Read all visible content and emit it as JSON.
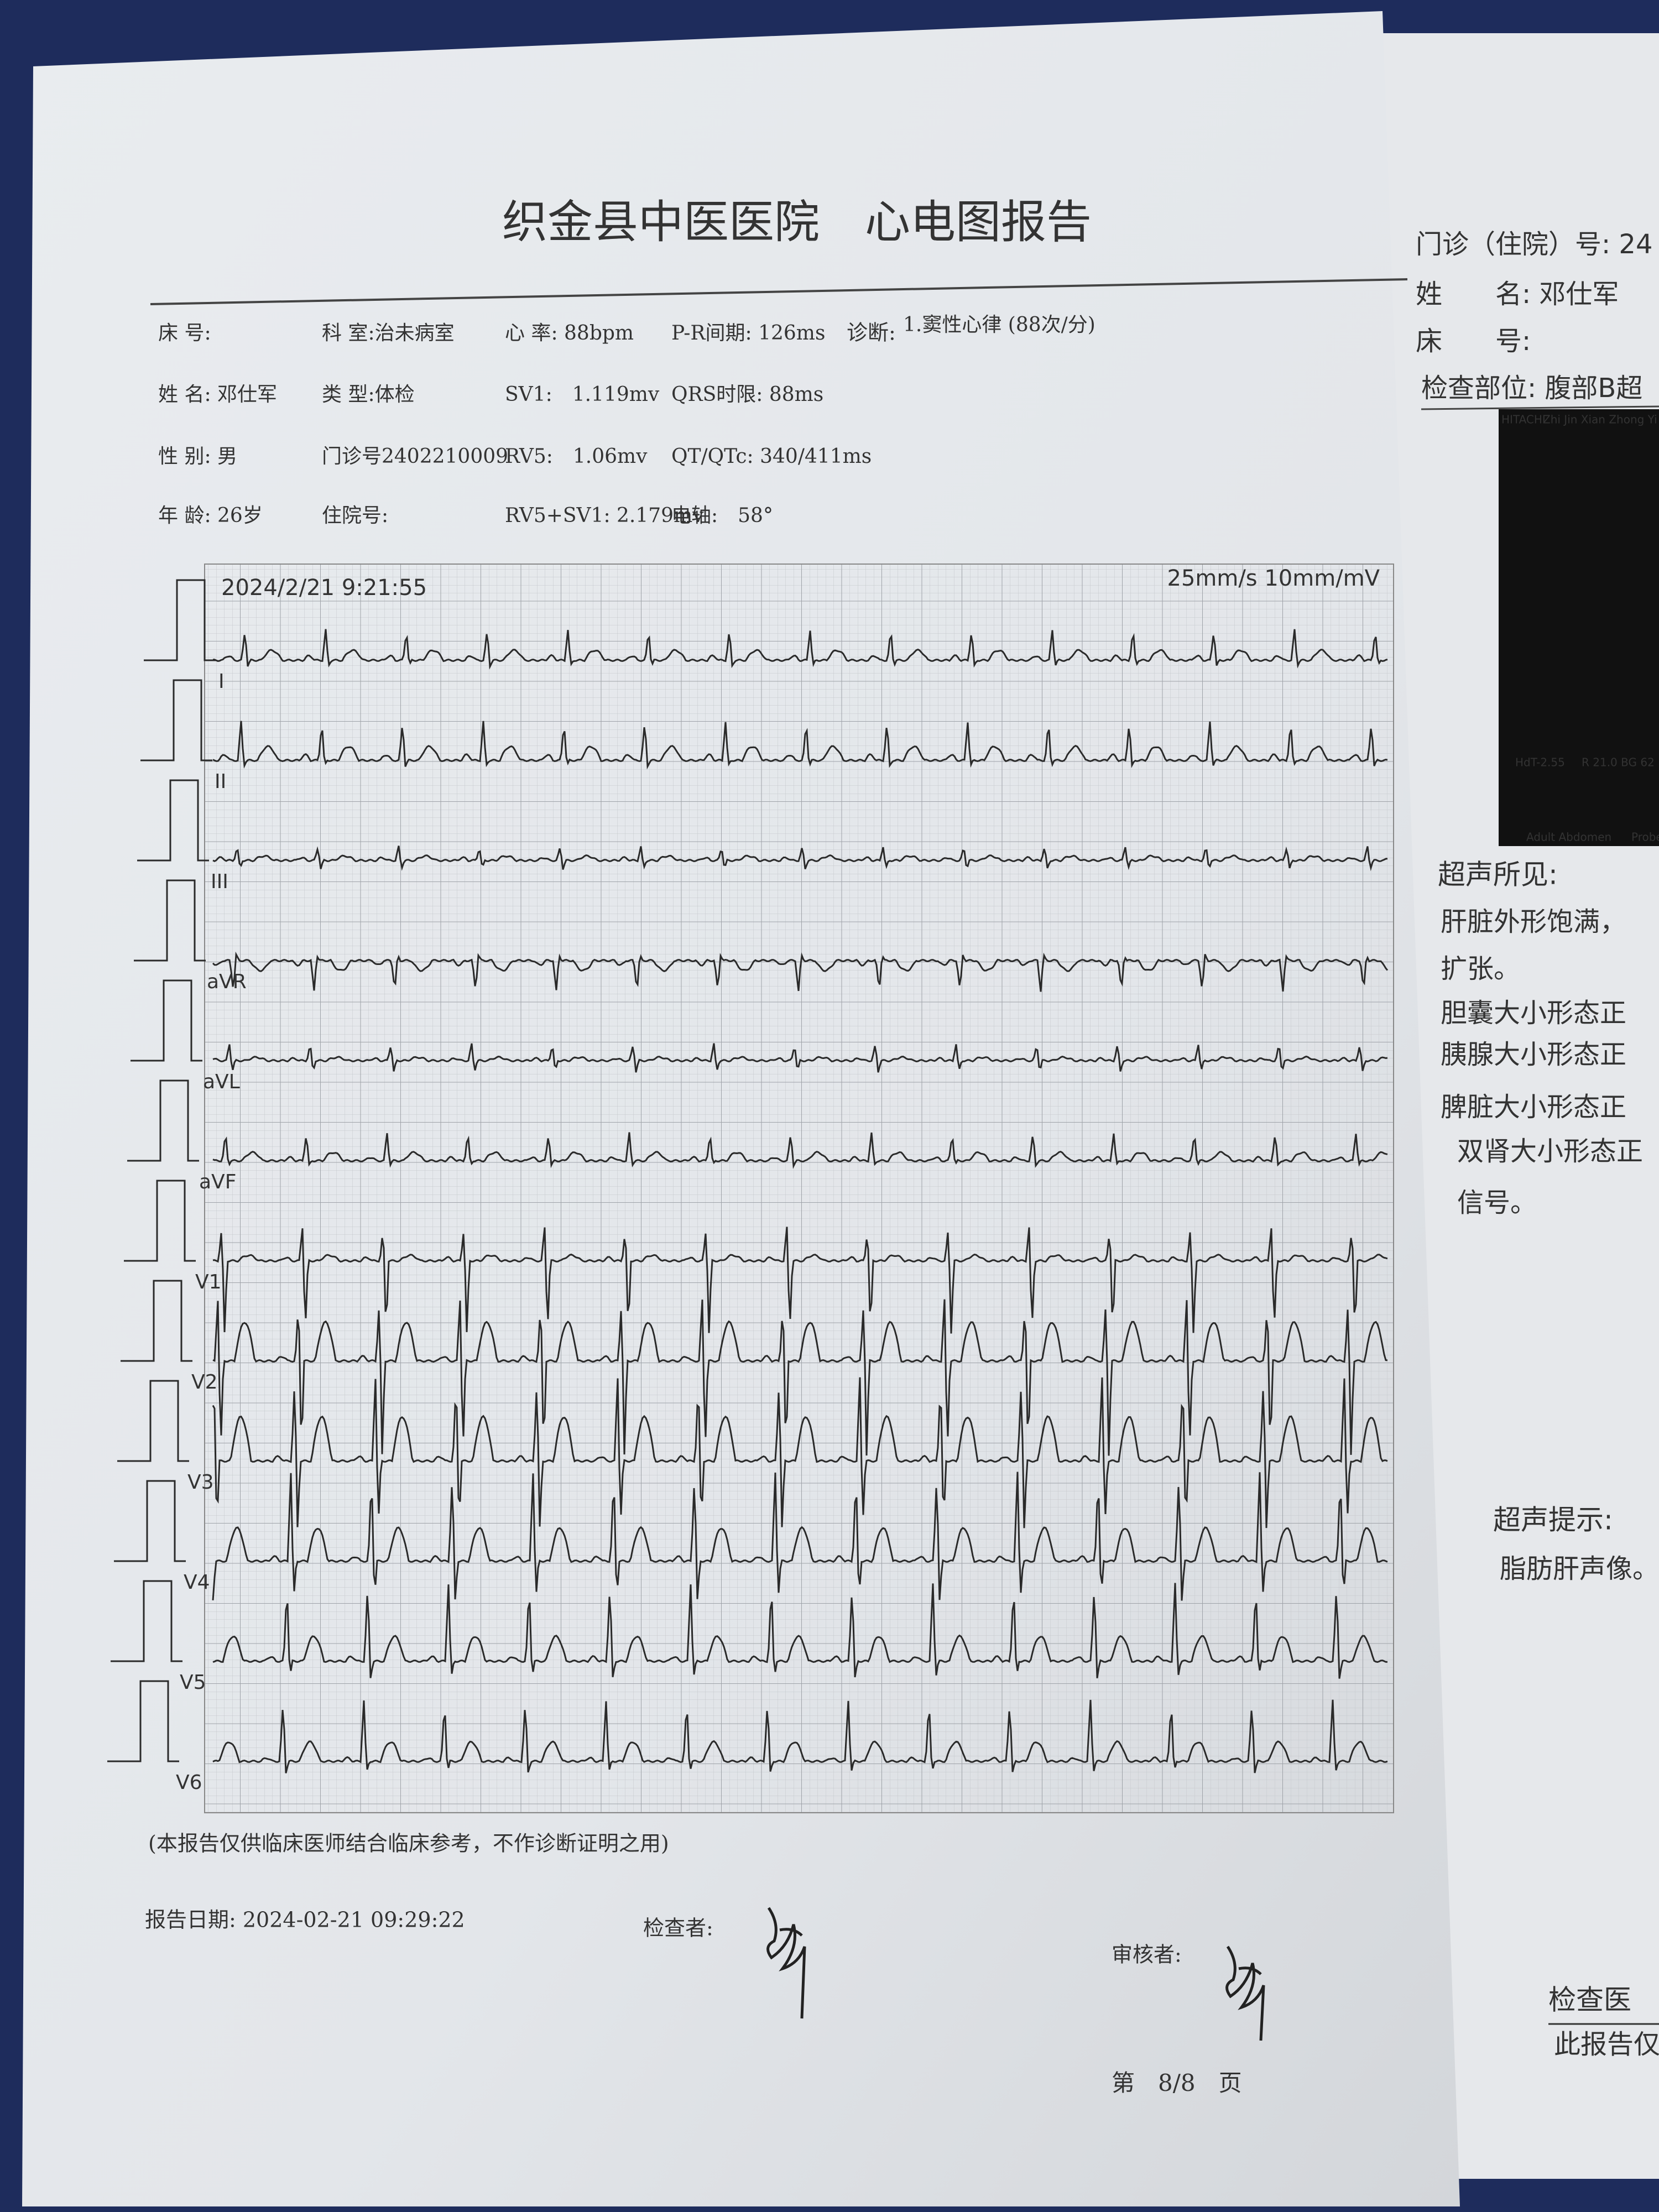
{
  "header": {
    "title": "织金县中医医院　心电图报告"
  },
  "info": {
    "rows": [
      [
        "床 号:",
        "科 室:治未病室",
        "心 率: 88bpm",
        "P-R间期: 126ms"
      ],
      [
        "姓 名: 邓仕军",
        "类 型:体检",
        "SV1:　1.119mv",
        "QRS时限: 88ms"
      ],
      [
        "性 别: 男",
        "门诊号2402210009",
        "RV5:　1.06mv",
        "QT/QTc: 340/411ms"
      ],
      [
        "年 龄: 26岁",
        "住院号:",
        "RV5+SV1: 2.179mv",
        "电轴:　58°"
      ]
    ],
    "diagnosis_label": "诊断:",
    "diagnosis": "1.窦性心律 (88次/分)"
  },
  "ecg": {
    "timestamp": "2024/2/21 9:21:55",
    "settings": "25mm/s 10mm/mV",
    "leads": [
      "I",
      "II",
      "III",
      "aVR",
      "aVL",
      "aVF",
      "V1",
      "V2",
      "V3",
      "V4",
      "V5",
      "V6"
    ]
  },
  "footer": {
    "disclaimer": "(本报告仅供临床医师结合临床参考，不作诊断证明之用)",
    "report_date": "报告日期: 2024-02-21 09:29:22",
    "examiner": "检查者:",
    "reviewer": "审核者:",
    "page": "第　8/8　页"
  },
  "side_page": {
    "id_line": "门诊（住院）号: 24",
    "name_line": "姓　　名: 邓仕军",
    "bed_line": "床　　号:",
    "exam_part": "检查部位: 腹部B超",
    "image_texts": [
      "HITACHI",
      "Zhi Jin Xian Zhong Yi Yuan",
      "HdT-2.55",
      "R 21.0 BG 62",
      "Adult Abdomen",
      "Probe"
    ],
    "findings_title": "超声所见:",
    "findings": [
      "肝脏外形饱满，",
      "扩张。",
      "胆囊大小形态正",
      "胰腺大小形态正",
      "脾脏大小形态正",
      "双肾大小形态正",
      "信号。"
    ],
    "conclusion_title": "超声提示:",
    "conclusion": "脂肪肝声像。",
    "doctor": "检查医",
    "note": "此报告仅"
  }
}
